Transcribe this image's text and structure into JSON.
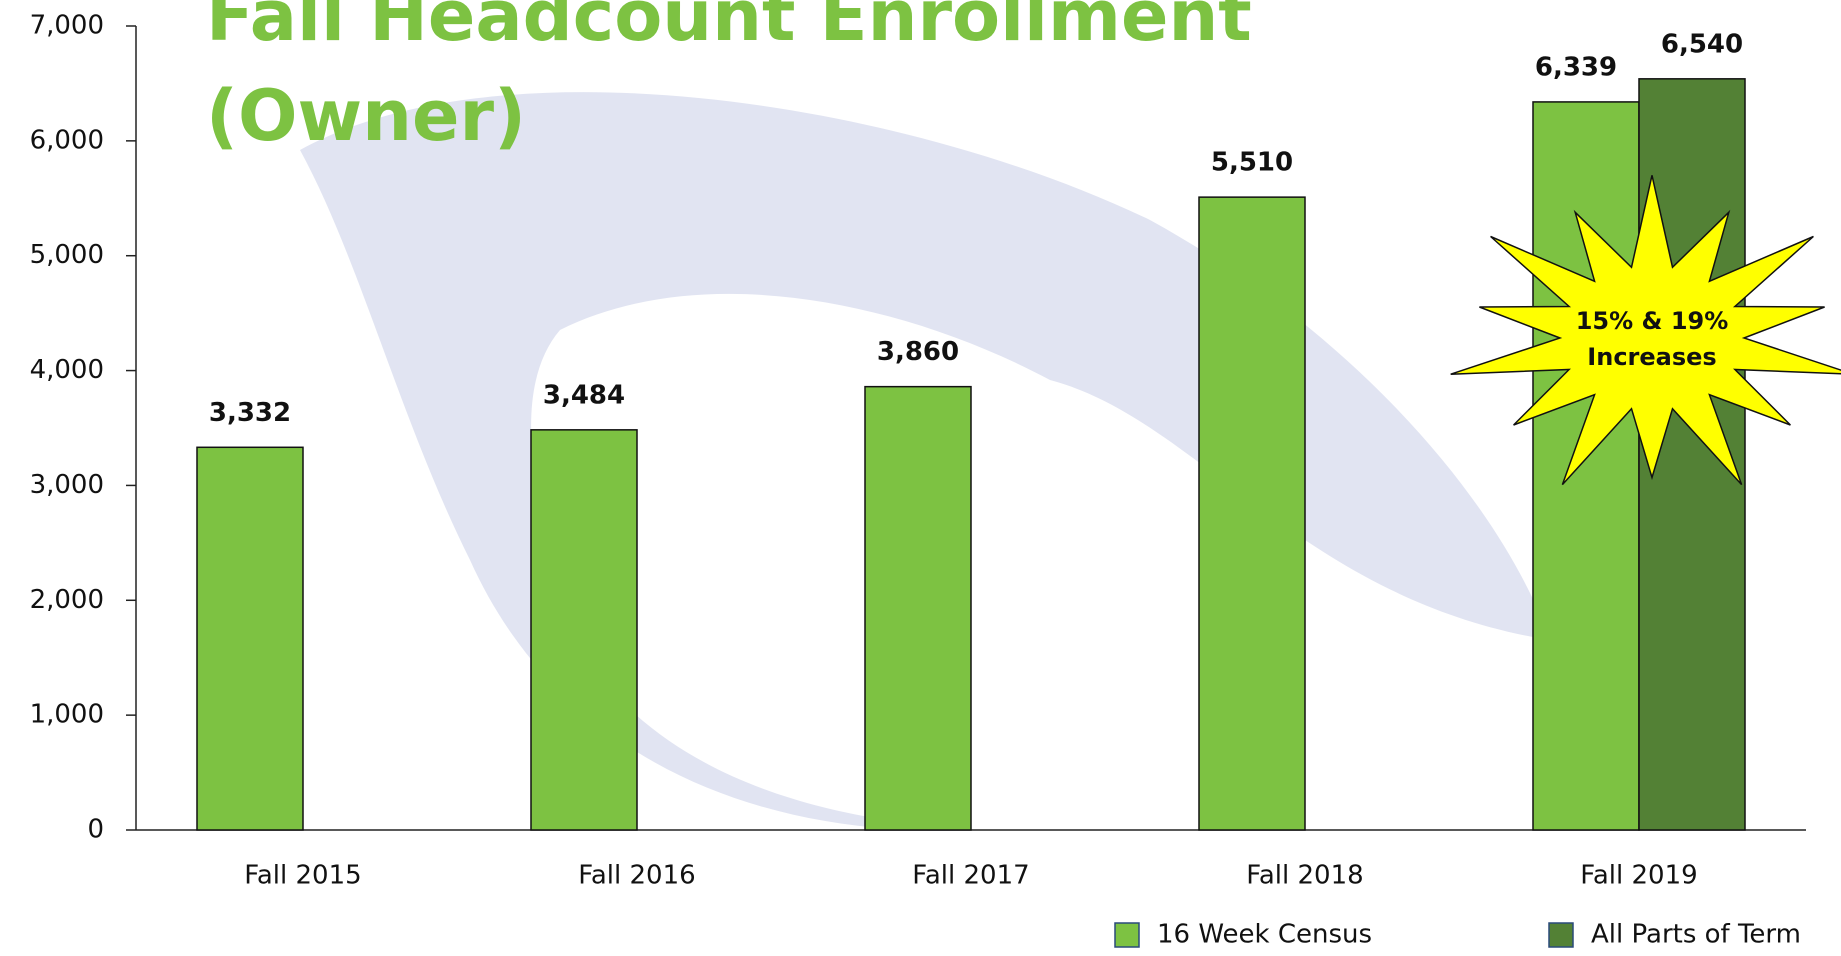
{
  "chart_data": {
    "type": "bar",
    "title": [
      "Fall Headcount Enrollment",
      "(Owner)"
    ],
    "categories": [
      "Fall 2015",
      "Fall 2016",
      "Fall 2017",
      "Fall 2018",
      "Fall 2019"
    ],
    "series": [
      {
        "name": "16 Week Census",
        "color": "#7dc242",
        "values": [
          3332,
          3484,
          3860,
          5510,
          6339
        ],
        "value_labels": [
          "3,332",
          "3,484",
          "3,860",
          "5,510",
          "6,339"
        ]
      },
      {
        "name": "All Parts of Term",
        "color": "#538135",
        "values": [
          null,
          null,
          null,
          null,
          6540
        ],
        "value_labels": [
          null,
          null,
          null,
          null,
          "6,540"
        ]
      }
    ],
    "annotation": [
      "15% & 19%",
      "Increases"
    ],
    "ylim": [
      0,
      7000
    ],
    "yticks": [
      0,
      {
        "value": 1000,
        "label": "1,000"
      },
      {
        "value": 2000,
        "label": "2,000"
      },
      {
        "value": 3000,
        "label": "3,000"
      },
      {
        "value": 4000,
        "label": "4,000"
      },
      {
        "value": 5000,
        "label": "5,000"
      },
      {
        "value": 6000,
        "label": "6,000"
      },
      {
        "value": 7000,
        "label": "7,000"
      }
    ],
    "grid": false,
    "legend": "bottom-right"
  }
}
